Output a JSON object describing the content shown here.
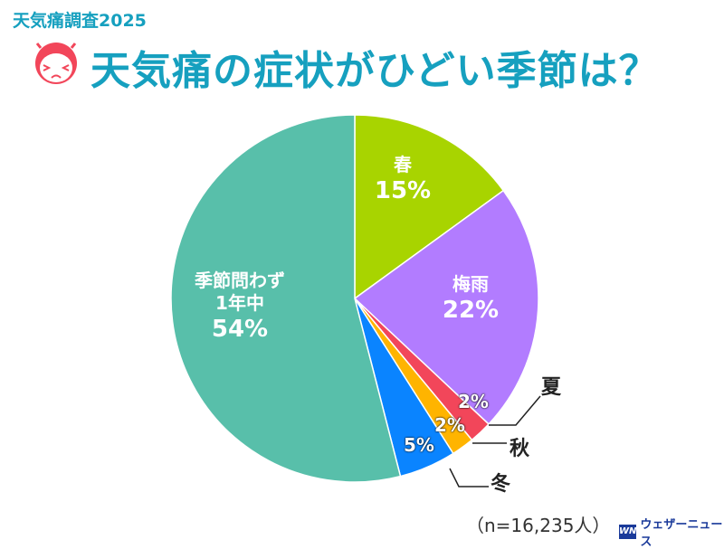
{
  "header": {
    "subtitle": "天気痛調査2025",
    "title": "天気痛の症状がひどい季節は？",
    "icon": "pained-face-icon"
  },
  "chart_data": {
    "type": "pie",
    "title": "天気痛の症状がひどい季節は？",
    "start": "top",
    "direction": "clockwise",
    "slices": [
      {
        "label": "春",
        "value": 15,
        "display": "15%",
        "color": "#a8d400"
      },
      {
        "label": "梅雨",
        "value": 22,
        "display": "22%",
        "color": "#b27cff"
      },
      {
        "label": "夏",
        "value": 2,
        "display": "2%",
        "color": "#f2465a"
      },
      {
        "label": "秋",
        "value": 2,
        "display": "2%",
        "color": "#ffb400"
      },
      {
        "label": "冬",
        "value": 5,
        "display": "5%",
        "color": "#0a84ff"
      },
      {
        "label": "季節問わず1年中",
        "label_lines": [
          "季節問わず",
          "1年中"
        ],
        "value": 54,
        "display": "54%",
        "color": "#58bfaa"
      }
    ]
  },
  "footer": {
    "sample": "（n=16,235人）",
    "brand": "ウェザーニュース",
    "brand_logo": "WN"
  }
}
